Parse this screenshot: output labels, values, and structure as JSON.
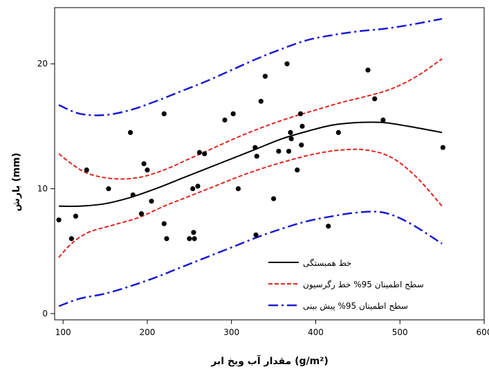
{
  "chart_data": {
    "type": "scatter",
    "title": "",
    "xlabel": "مقدار آب ویخ ابر (g/m²)",
    "ylabel": "بارش (mm)",
    "xlim": [
      90,
      600
    ],
    "ylim": [
      -0.5,
      24.5
    ],
    "x_ticks": [
      100,
      200,
      300,
      400,
      500,
      600
    ],
    "y_ticks": [
      0,
      10,
      20
    ],
    "grid": false,
    "legend_position": "bottom-right",
    "colors": {
      "points": "#000000",
      "fit": "#000000",
      "confidence": "#e0241f",
      "prediction": "#1a1ad0"
    },
    "points": [
      {
        "x": 95,
        "y": 7.5
      },
      {
        "x": 110,
        "y": 6.0
      },
      {
        "x": 115,
        "y": 7.8
      },
      {
        "x": 128,
        "y": 11.5
      },
      {
        "x": 154,
        "y": 10.0
      },
      {
        "x": 180,
        "y": 14.5
      },
      {
        "x": 183,
        "y": 9.5
      },
      {
        "x": 193,
        "y": 8.0
      },
      {
        "x": 196,
        "y": 12.0
      },
      {
        "x": 200,
        "y": 11.5
      },
      {
        "x": 205,
        "y": 9.0
      },
      {
        "x": 220,
        "y": 16.0
      },
      {
        "x": 220,
        "y": 7.2
      },
      {
        "x": 223,
        "y": 6.0
      },
      {
        "x": 250,
        "y": 6.0
      },
      {
        "x": 254,
        "y": 10.0
      },
      {
        "x": 255,
        "y": 6.5
      },
      {
        "x": 256,
        "y": 6.0
      },
      {
        "x": 260,
        "y": 10.2
      },
      {
        "x": 262,
        "y": 12.9
      },
      {
        "x": 268,
        "y": 12.8
      },
      {
        "x": 292,
        "y": 15.5
      },
      {
        "x": 302,
        "y": 16.0
      },
      {
        "x": 308,
        "y": 10.0
      },
      {
        "x": 328,
        "y": 13.3
      },
      {
        "x": 329,
        "y": 6.3
      },
      {
        "x": 330,
        "y": 12.6
      },
      {
        "x": 335,
        "y": 17.0
      },
      {
        "x": 340,
        "y": 19.0
      },
      {
        "x": 350,
        "y": 9.2
      },
      {
        "x": 356,
        "y": 13.0
      },
      {
        "x": 366,
        "y": 20.0
      },
      {
        "x": 368,
        "y": 13.0
      },
      {
        "x": 370,
        "y": 14.5
      },
      {
        "x": 371,
        "y": 14.0
      },
      {
        "x": 378,
        "y": 11.5
      },
      {
        "x": 382,
        "y": 16.0
      },
      {
        "x": 383,
        "y": 13.5
      },
      {
        "x": 384,
        "y": 15.0
      },
      {
        "x": 415,
        "y": 7.0
      },
      {
        "x": 427,
        "y": 14.5
      },
      {
        "x": 462,
        "y": 19.5
      },
      {
        "x": 470,
        "y": 17.2
      },
      {
        "x": 480,
        "y": 15.5
      },
      {
        "x": 551,
        "y": 13.3
      }
    ],
    "series": [
      {
        "name": "خط همبستگی",
        "style": "solid",
        "x": [
          95,
          120,
          150,
          180,
          210,
          240,
          270,
          300,
          330,
          360,
          390,
          420,
          450,
          480,
          510,
          550
        ],
        "y": [
          8.6,
          8.6,
          8.8,
          9.3,
          10.0,
          10.8,
          11.6,
          12.4,
          13.2,
          14.0,
          14.6,
          15.1,
          15.3,
          15.3,
          15.0,
          14.5
        ]
      },
      {
        "name": "سطح اطمینان 95% خط رگرسیون",
        "style": "dashed",
        "x": [
          95,
          110,
          130,
          160,
          190,
          220,
          250,
          280,
          310,
          340,
          370,
          400,
          430,
          460,
          490,
          520,
          550
        ],
        "y": [
          12.8,
          12.0,
          11.2,
          10.8,
          10.9,
          11.5,
          12.4,
          13.3,
          14.2,
          15.0,
          15.7,
          16.3,
          16.9,
          17.4,
          18.0,
          19.0,
          20.4
        ]
      },
      {
        "name": "",
        "style": "dashed",
        "x": [
          95,
          110,
          130,
          160,
          190,
          220,
          250,
          280,
          310,
          340,
          370,
          400,
          430,
          460,
          490,
          520,
          550
        ],
        "y": [
          4.5,
          5.6,
          6.5,
          7.1,
          7.7,
          8.6,
          9.4,
          10.2,
          11.0,
          11.7,
          12.3,
          12.8,
          13.1,
          13.1,
          12.5,
          10.9,
          8.6
        ]
      },
      {
        "name": "سطح اطمینان 95% پیش بینی",
        "style": "dashdot",
        "x": [
          95,
          120,
          150,
          180,
          210,
          240,
          270,
          300,
          330,
          360,
          390,
          420,
          450,
          480,
          510,
          550
        ],
        "y": [
          16.7,
          16.0,
          15.9,
          16.3,
          17.0,
          17.8,
          18.6,
          19.5,
          20.4,
          21.2,
          21.9,
          22.3,
          22.6,
          22.8,
          23.1,
          23.6
        ]
      },
      {
        "name": "",
        "style": "dashdot",
        "x": [
          95,
          120,
          150,
          180,
          210,
          240,
          270,
          300,
          330,
          360,
          390,
          420,
          450,
          480,
          510,
          550
        ],
        "y": [
          0.6,
          1.2,
          1.6,
          2.2,
          2.9,
          3.7,
          4.5,
          5.3,
          6.1,
          6.8,
          7.4,
          7.8,
          8.1,
          8.1,
          7.3,
          5.6
        ]
      }
    ],
    "legend": [
      {
        "label": "خط همبستگی",
        "style": "solid"
      },
      {
        "label": "سطح اطمینان 95% خط رگرسیون",
        "style": "dashed"
      },
      {
        "label": "سطح اطمینان 95% پیش بینی",
        "style": "dashdot"
      }
    ]
  }
}
